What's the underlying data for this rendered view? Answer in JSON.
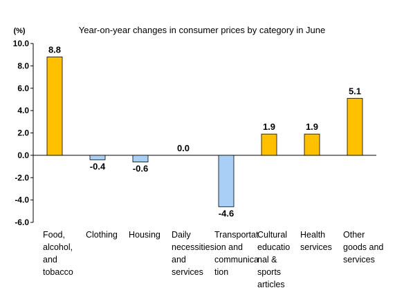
{
  "chart_data": {
    "type": "bar",
    "title": "Year-on-year changes in consumer prices by category in June",
    "unit_label": "(%)",
    "categories": [
      [
        "Food,",
        "alcohol,",
        "and",
        "tobacco"
      ],
      [
        "Clothing"
      ],
      [
        "Housing"
      ],
      [
        "Daily",
        "necessities",
        "and",
        "services"
      ],
      [
        "Transportat",
        "ion and",
        "communica",
        "tion"
      ],
      [
        "Cultural",
        "educatio",
        "nal &",
        "sports",
        "articles"
      ],
      [
        "Health",
        "services"
      ],
      [
        "Other",
        "goods and",
        "services"
      ]
    ],
    "values": [
      8.8,
      -0.4,
      -0.6,
      0.0,
      -4.6,
      1.9,
      1.9,
      5.1
    ],
    "value_labels": [
      "8.8",
      "-0.4",
      "-0.6",
      "0.0",
      "-4.6",
      "1.9",
      "1.9",
      "5.1"
    ],
    "ylim": [
      -6.0,
      10.0
    ],
    "yticks": [
      10.0,
      8.0,
      6.0,
      4.0,
      2.0,
      0.0,
      -2.0,
      -4.0,
      -6.0
    ],
    "ytick_labels": [
      "10.0",
      "8.0",
      "6.0",
      "4.0",
      "2.0",
      "0.0",
      "-2.0",
      "-4.0",
      "-6.0"
    ],
    "grid": false,
    "colors": {
      "positive": "#FFC000",
      "negative": "#A9CFF7",
      "border": "#000000"
    }
  }
}
